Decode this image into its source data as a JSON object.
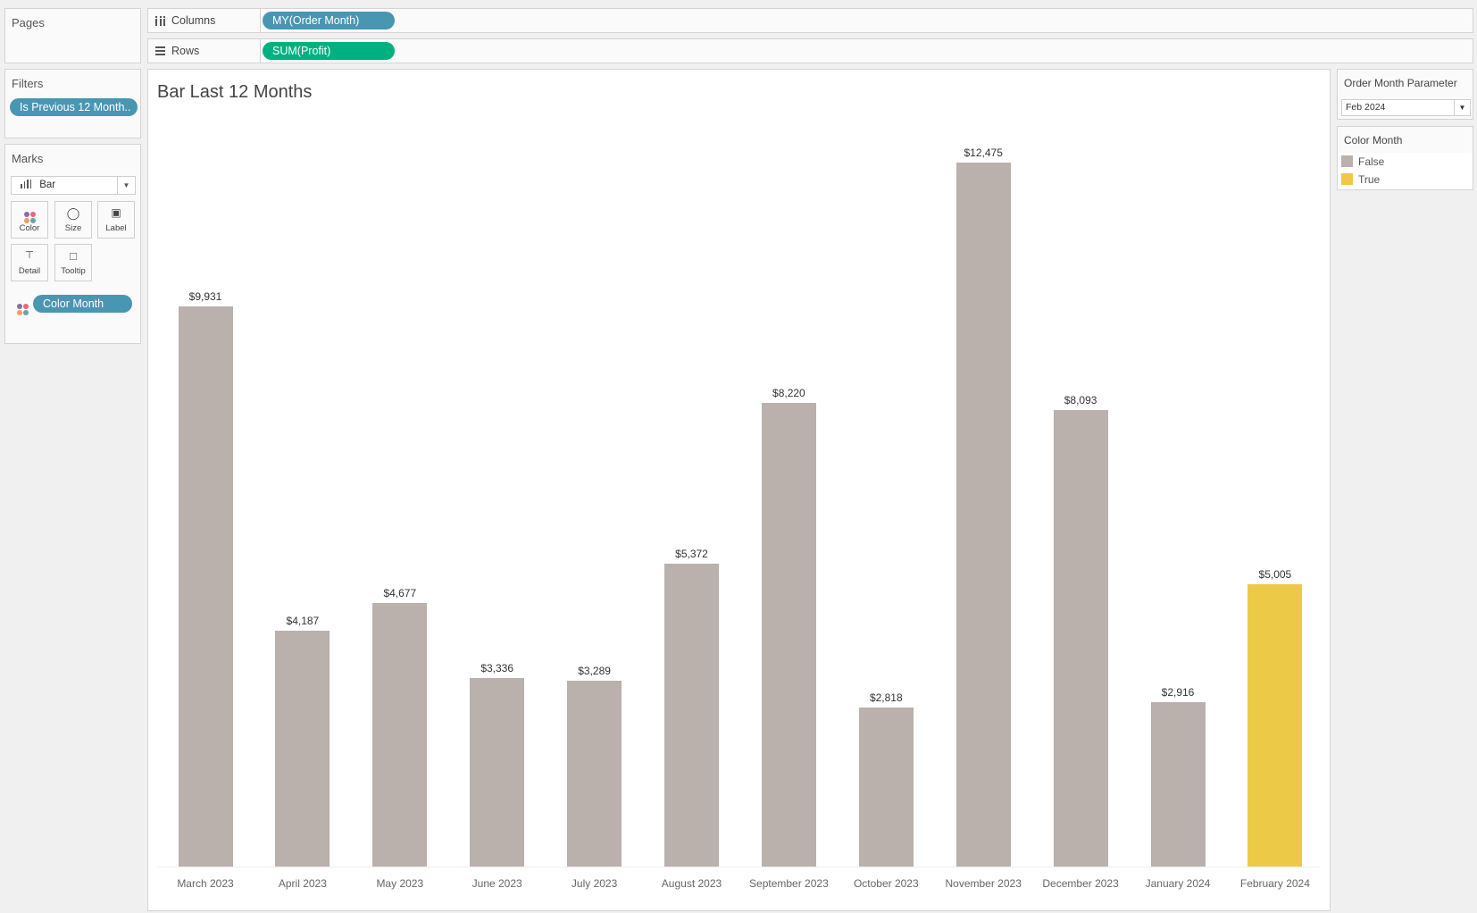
{
  "pages": {
    "title": "Pages"
  },
  "shelves": {
    "columns_label": "Columns",
    "columns_pill": "MY(Order Month)",
    "rows_label": "Rows",
    "rows_pill": "SUM(Profit)"
  },
  "filters": {
    "title": "Filters",
    "pill": "Is Previous 12 Month.."
  },
  "marks": {
    "title": "Marks",
    "type": "Bar",
    "cards": [
      "Color",
      "Size",
      "Label",
      "Detail",
      "Tooltip"
    ],
    "color_pill": "Color Month"
  },
  "parameter": {
    "title": "Order Month Parameter",
    "value": "Feb 2024"
  },
  "legend": {
    "title": "Color Month",
    "items": [
      {
        "label": "False",
        "color": "#bab0ac"
      },
      {
        "label": "True",
        "color": "#edc948"
      }
    ]
  },
  "chart_data": {
    "type": "bar",
    "title": "Bar Last 12 Months",
    "categories": [
      "March 2023",
      "April 2023",
      "May 2023",
      "June 2023",
      "July 2023",
      "August 2023",
      "September 2023",
      "October 2023",
      "November 2023",
      "December 2023",
      "January 2024",
      "February 2024"
    ],
    "values": [
      9931,
      4187,
      4677,
      3336,
      3289,
      5372,
      8220,
      2818,
      12475,
      8093,
      2916,
      5005
    ],
    "labels": [
      "$9,931",
      "$4,187",
      "$4,677",
      "$3,336",
      "$3,289",
      "$5,372",
      "$8,220",
      "$2,818",
      "$12,475",
      "$8,093",
      "$2,916",
      "$5,005"
    ],
    "color_month": [
      false,
      false,
      false,
      false,
      false,
      false,
      false,
      false,
      false,
      false,
      false,
      true
    ],
    "colors": {
      "false": "#bab0ac",
      "true": "#edc948"
    },
    "ylabel": "",
    "xlabel": "",
    "grid": false
  }
}
